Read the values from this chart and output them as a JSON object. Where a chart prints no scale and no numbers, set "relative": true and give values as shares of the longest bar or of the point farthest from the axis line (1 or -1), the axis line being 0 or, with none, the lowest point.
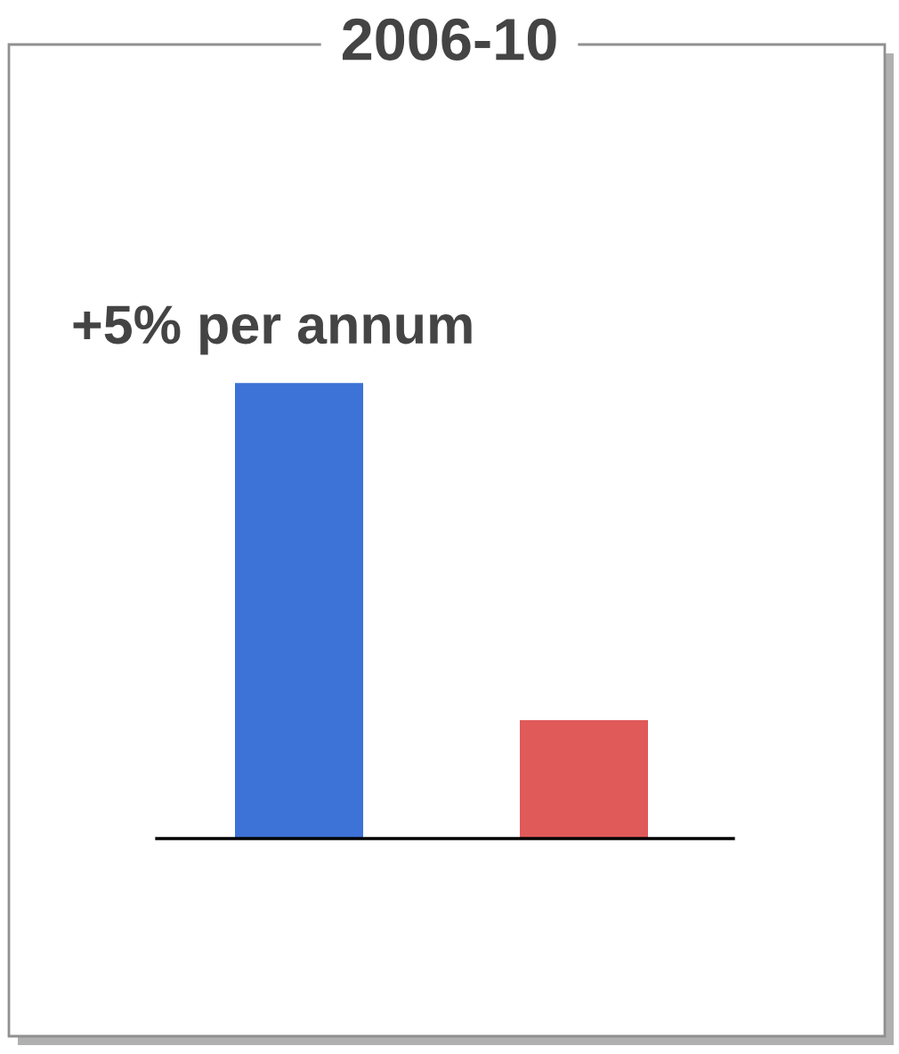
{
  "chart_data": {
    "type": "bar",
    "title": "2006-10",
    "relative": true,
    "categories": [
      null,
      null
    ],
    "values": [
      1,
      0.26
    ],
    "colors": [
      "#3d72d6",
      "#e05a5a"
    ],
    "annotations": [
      "+5% per annum"
    ]
  }
}
